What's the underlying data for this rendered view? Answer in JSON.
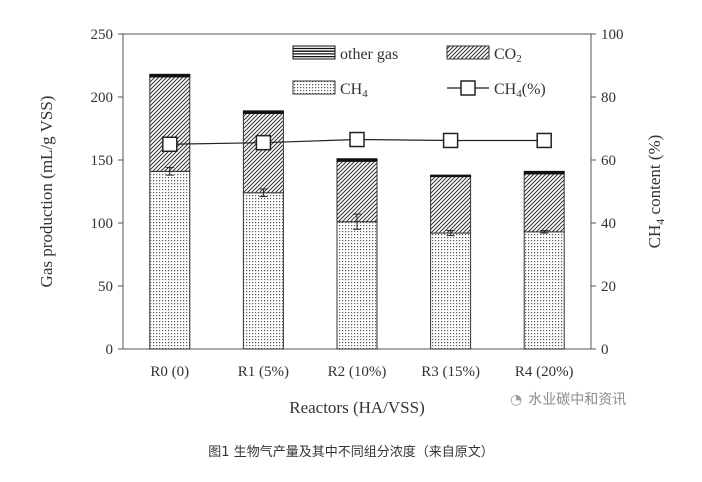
{
  "caption": "图1 生物气产量及其中不同组分浓度（来自原文）",
  "watermark": "水业碳中和资讯",
  "chart_data": {
    "type": "bar",
    "categories": [
      "R0 (0)",
      "R1 (5%)",
      "R2 (10%)",
      "R3 (15%)",
      "R4 (20%)"
    ],
    "series": [
      {
        "name": "CH4",
        "stack": true,
        "values": [
          141,
          124,
          101,
          92,
          93
        ],
        "error": [
          3,
          3,
          6,
          2,
          1
        ],
        "pattern": "dots"
      },
      {
        "name": "CO2",
        "stack": true,
        "values": [
          75,
          63,
          48,
          45,
          46
        ],
        "pattern": "hatch"
      },
      {
        "name": "other gas",
        "stack": true,
        "values": [
          2,
          2,
          2,
          1,
          2
        ],
        "pattern": "lines"
      },
      {
        "name": "CH4(%)",
        "axis": "right",
        "type": "line",
        "marker": "open-square",
        "values": [
          65,
          65.5,
          66.5,
          66.2,
          66.2
        ]
      }
    ],
    "xlabel": "Reactors (HA/VSS)",
    "ylabel": "Gas production (mL/g VSS)",
    "y2label": "CH4 content (%)",
    "ylim": [
      0,
      250
    ],
    "y2lim": [
      0,
      100
    ],
    "yticks": [
      "0",
      "50",
      "100",
      "150",
      "200",
      "250"
    ],
    "y2ticks": [
      "0",
      "20",
      "40",
      "60",
      "80",
      "100"
    ],
    "legend_position": "top-right",
    "grid": false
  }
}
